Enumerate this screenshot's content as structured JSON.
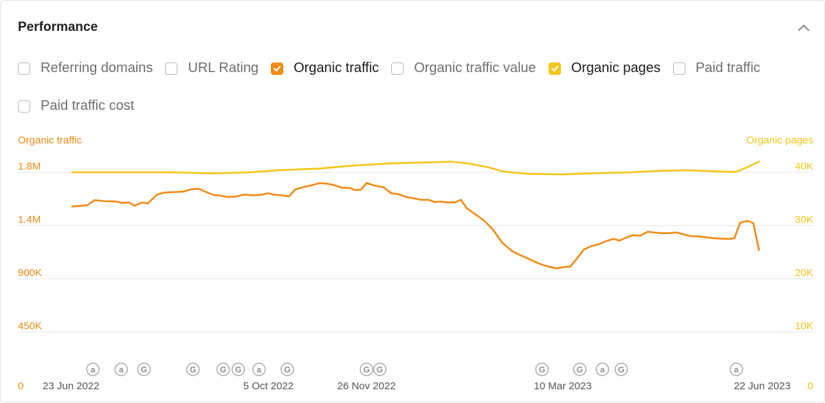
{
  "header": {
    "title": "Performance"
  },
  "metrics": [
    {
      "label": "Referring domains",
      "checked": false,
      "color": "#f28a14"
    },
    {
      "label": "URL Rating",
      "checked": false,
      "color": "#f28a14"
    },
    {
      "label": "Organic traffic",
      "checked": true,
      "color": "#f28a14"
    },
    {
      "label": "Organic traffic value",
      "checked": false,
      "color": "#f28a14"
    },
    {
      "label": "Organic pages",
      "checked": true,
      "color": "#f5c518"
    },
    {
      "label": "Paid traffic",
      "checked": false,
      "color": "#f28a14"
    },
    {
      "label": "Paid traffic cost",
      "checked": false,
      "color": "#f28a14"
    }
  ],
  "chart_data": {
    "type": "line",
    "grid": true,
    "y_left": {
      "label": "Organic traffic",
      "color": "#f28a14",
      "min": 0,
      "max": 1800000,
      "ticks": [
        {
          "v": 0,
          "t": "0"
        },
        {
          "v": 450000,
          "t": "450K"
        },
        {
          "v": 900000,
          "t": "900K"
        },
        {
          "v": 1350000,
          "t": "1.4M"
        },
        {
          "v": 1800000,
          "t": "1.8M"
        }
      ]
    },
    "y_right": {
      "label": "Organic pages",
      "color": "#f5c518",
      "min": 0,
      "max": 40000,
      "ticks": [
        {
          "v": 0,
          "t": "0"
        },
        {
          "v": 10000,
          "t": "10K"
        },
        {
          "v": 20000,
          "t": "20K"
        },
        {
          "v": 30000,
          "t": "30K"
        },
        {
          "v": 40000,
          "t": "40K"
        }
      ]
    },
    "x_axis": {
      "start": "2022-06-23",
      "end": "2023-06-22",
      "ticks": [
        {
          "date": "2022-06-23",
          "label": "23 Jun 2022"
        },
        {
          "date": "2022-10-05",
          "label": "5 Oct 2022"
        },
        {
          "date": "2022-11-26",
          "label": "26 Nov 2022"
        },
        {
          "date": "2023-03-10",
          "label": "10 Mar 2023"
        },
        {
          "date": "2023-06-22",
          "label": "22 Jun 2023"
        }
      ]
    },
    "annotations": [
      {
        "date": "2022-07-04",
        "type": "a"
      },
      {
        "date": "2022-07-19",
        "type": "a"
      },
      {
        "date": "2022-07-31",
        "type": "G"
      },
      {
        "date": "2022-08-26",
        "type": "G"
      },
      {
        "date": "2022-09-11",
        "type": "G"
      },
      {
        "date": "2022-09-19",
        "type": "G"
      },
      {
        "date": "2022-09-30",
        "type": "a"
      },
      {
        "date": "2022-10-15",
        "type": "G"
      },
      {
        "date": "2022-11-26",
        "type": "G"
      },
      {
        "date": "2022-12-03",
        "type": "G"
      },
      {
        "date": "2023-02-27",
        "type": "G"
      },
      {
        "date": "2023-03-19",
        "type": "G"
      },
      {
        "date": "2023-03-31",
        "type": "a"
      },
      {
        "date": "2023-04-10",
        "type": "G"
      },
      {
        "date": "2023-06-10",
        "type": "a"
      }
    ],
    "series": [
      {
        "name": "Organic traffic",
        "axis": "left",
        "color": "#f28a14",
        "points": [
          [
            "2022-06-23",
            1511000
          ],
          [
            "2022-07-01",
            1522000
          ],
          [
            "2022-07-05",
            1565000
          ],
          [
            "2022-07-10",
            1556000
          ],
          [
            "2022-07-16",
            1554000
          ],
          [
            "2022-07-19",
            1542000
          ],
          [
            "2022-07-23",
            1545000
          ],
          [
            "2022-07-26",
            1517000
          ],
          [
            "2022-07-30",
            1545000
          ],
          [
            "2022-08-02",
            1537000
          ],
          [
            "2022-08-07",
            1612000
          ],
          [
            "2022-08-11",
            1629000
          ],
          [
            "2022-08-16",
            1633000
          ],
          [
            "2022-08-21",
            1637000
          ],
          [
            "2022-08-25",
            1656000
          ],
          [
            "2022-08-29",
            1662000
          ],
          [
            "2022-09-01",
            1640000
          ],
          [
            "2022-09-06",
            1608000
          ],
          [
            "2022-09-09",
            1605000
          ],
          [
            "2022-09-13",
            1592000
          ],
          [
            "2022-09-18",
            1595000
          ],
          [
            "2022-09-22",
            1612000
          ],
          [
            "2022-09-27",
            1605000
          ],
          [
            "2022-10-01",
            1610000
          ],
          [
            "2022-10-05",
            1623000
          ],
          [
            "2022-10-08",
            1610000
          ],
          [
            "2022-10-12",
            1605000
          ],
          [
            "2022-10-16",
            1597000
          ],
          [
            "2022-10-19",
            1653000
          ],
          [
            "2022-10-24",
            1677000
          ],
          [
            "2022-10-28",
            1690000
          ],
          [
            "2022-11-01",
            1708000
          ],
          [
            "2022-11-05",
            1705000
          ],
          [
            "2022-11-09",
            1690000
          ],
          [
            "2022-11-13",
            1670000
          ],
          [
            "2022-11-17",
            1668000
          ],
          [
            "2022-11-20",
            1650000
          ],
          [
            "2022-11-23",
            1653000
          ],
          [
            "2022-11-26",
            1710000
          ],
          [
            "2022-11-30",
            1689000
          ],
          [
            "2022-12-05",
            1674000
          ],
          [
            "2022-12-09",
            1624000
          ],
          [
            "2022-12-13",
            1615000
          ],
          [
            "2022-12-17",
            1591000
          ],
          [
            "2022-12-21",
            1580000
          ],
          [
            "2022-12-25",
            1567000
          ],
          [
            "2022-12-29",
            1567000
          ],
          [
            "2023-01-01",
            1549000
          ],
          [
            "2023-01-04",
            1552000
          ],
          [
            "2023-01-08",
            1545000
          ],
          [
            "2023-01-12",
            1546000
          ],
          [
            "2023-01-15",
            1568000
          ],
          [
            "2023-01-18",
            1498000
          ],
          [
            "2023-01-22",
            1452000
          ],
          [
            "2023-01-27",
            1397000
          ],
          [
            "2023-02-01",
            1316000
          ],
          [
            "2023-02-06",
            1203000
          ],
          [
            "2023-02-11",
            1135000
          ],
          [
            "2023-02-15",
            1102000
          ],
          [
            "2023-02-19",
            1075000
          ],
          [
            "2023-02-23",
            1045000
          ],
          [
            "2023-02-27",
            1019000
          ],
          [
            "2023-03-03",
            1000000
          ],
          [
            "2023-03-07",
            988000
          ],
          [
            "2023-03-11",
            1000000
          ],
          [
            "2023-03-14",
            1003000
          ],
          [
            "2023-03-17",
            1060000
          ],
          [
            "2023-03-21",
            1145000
          ],
          [
            "2023-03-25",
            1175000
          ],
          [
            "2023-03-29",
            1191000
          ],
          [
            "2023-04-02",
            1218000
          ],
          [
            "2023-04-06",
            1237000
          ],
          [
            "2023-04-09",
            1223000
          ],
          [
            "2023-04-12",
            1244000
          ],
          [
            "2023-04-16",
            1269000
          ],
          [
            "2023-04-20",
            1264000
          ],
          [
            "2023-04-24",
            1297000
          ],
          [
            "2023-04-27",
            1292000
          ],
          [
            "2023-05-01",
            1285000
          ],
          [
            "2023-05-05",
            1285000
          ],
          [
            "2023-05-09",
            1292000
          ],
          [
            "2023-05-13",
            1275000
          ],
          [
            "2023-05-17",
            1260000
          ],
          [
            "2023-05-21",
            1258000
          ],
          [
            "2023-05-25",
            1250000
          ],
          [
            "2023-05-29",
            1243000
          ],
          [
            "2023-06-02",
            1239000
          ],
          [
            "2023-06-06",
            1236000
          ],
          [
            "2023-06-09",
            1244000
          ],
          [
            "2023-06-12",
            1373000
          ],
          [
            "2023-06-16",
            1390000
          ],
          [
            "2023-06-19",
            1370000
          ],
          [
            "2023-06-22",
            1143000
          ]
        ]
      },
      {
        "name": "Organic pages",
        "axis": "right",
        "color": "#f5c518",
        "points": [
          [
            "2022-06-23",
            40000
          ],
          [
            "2022-07-15",
            40000
          ],
          [
            "2022-08-15",
            40000
          ],
          [
            "2022-09-05",
            39800
          ],
          [
            "2022-09-25",
            40000
          ],
          [
            "2022-10-10",
            40400
          ],
          [
            "2022-11-01",
            40700
          ],
          [
            "2022-11-20",
            41300
          ],
          [
            "2022-12-10",
            41700
          ],
          [
            "2023-01-01",
            41900
          ],
          [
            "2023-01-10",
            42000
          ],
          [
            "2023-01-20",
            41600
          ],
          [
            "2023-01-30",
            40900
          ],
          [
            "2023-02-07",
            40100
          ],
          [
            "2023-02-20",
            39700
          ],
          [
            "2023-03-10",
            39600
          ],
          [
            "2023-03-24",
            39800
          ],
          [
            "2023-04-15",
            40000
          ],
          [
            "2023-05-01",
            40300
          ],
          [
            "2023-05-15",
            40400
          ],
          [
            "2023-06-05",
            40100
          ],
          [
            "2023-06-10",
            40100
          ],
          [
            "2023-06-16",
            41000
          ],
          [
            "2023-06-22",
            42000
          ]
        ]
      }
    ]
  }
}
